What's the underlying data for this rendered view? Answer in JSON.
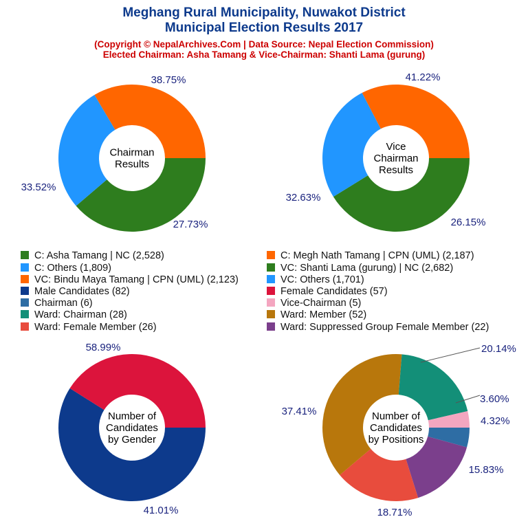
{
  "title_line1": "Meghang Rural Municipality, Nuwakot District",
  "title_line2": "Municipal Election Results 2017",
  "subtitle_line1": "(Copyright © NepalArchives.Com | Data Source: Nepal Election Commission)",
  "subtitle_line2": "Elected Chairman: Asha Tamang & Vice-Chairman: Shanti Lama (gurung)",
  "legend": [
    {
      "label": "C: Asha Tamang | NC (2,528)",
      "color": "#2e7d1e"
    },
    {
      "label": "C: Megh Nath Tamang | CPN (UML) (2,187)",
      "color": "#ff6600"
    },
    {
      "label": "C: Others (1,809)",
      "color": "#2196ff"
    },
    {
      "label": "VC: Shanti Lama (gurung) | NC (2,682)",
      "color": "#2e7d1e"
    },
    {
      "label": "VC: Bindu Maya Tamang | CPN (UML) (2,123)",
      "color": "#ff6600"
    },
    {
      "label": "VC: Others (1,701)",
      "color": "#2196ff"
    },
    {
      "label": "Male Candidates (82)",
      "color": "#0d3a8c"
    },
    {
      "label": "Female Candidates (57)",
      "color": "#dc143c"
    },
    {
      "label": "Chairman (6)",
      "color": "#2e6da4"
    },
    {
      "label": "Vice-Chairman (5)",
      "color": "#f4a6c0"
    },
    {
      "label": "Ward: Chairman (28)",
      "color": "#138f78"
    },
    {
      "label": "Ward: Member (52)",
      "color": "#b8770c"
    },
    {
      "label": "Ward: Female Member (26)",
      "color": "#e84c3d"
    },
    {
      "label": "Ward: Suppressed Group Female Member (22)",
      "color": "#7b3f8c"
    }
  ],
  "chart_data": [
    {
      "type": "pie",
      "center_label": [
        "Chairman",
        "Results"
      ],
      "slices": [
        {
          "value": 38.75,
          "label": "38.75%",
          "color": "#2e7d1e"
        },
        {
          "value": 27.73,
          "label": "27.73%",
          "color": "#2196ff"
        },
        {
          "value": 33.52,
          "label": "33.52%",
          "color": "#ff6600"
        }
      ]
    },
    {
      "type": "pie",
      "center_label": [
        "Vice",
        "Chairman",
        "Results"
      ],
      "slices": [
        {
          "value": 41.22,
          "label": "41.22%",
          "color": "#2e7d1e"
        },
        {
          "value": 26.15,
          "label": "26.15%",
          "color": "#2196ff"
        },
        {
          "value": 32.63,
          "label": "32.63%",
          "color": "#ff6600"
        }
      ]
    },
    {
      "type": "pie",
      "center_label": [
        "Number of",
        "Candidates",
        "by Gender"
      ],
      "slices": [
        {
          "value": 58.99,
          "label": "58.99%",
          "color": "#0d3a8c"
        },
        {
          "value": 41.01,
          "label": "41.01%",
          "color": "#dc143c"
        }
      ]
    },
    {
      "type": "pie",
      "center_label": [
        "Number of",
        "Candidates",
        "by Positions"
      ],
      "slices": [
        {
          "value": 4.32,
          "label": "4.32%",
          "color": "#2e6da4"
        },
        {
          "value": 15.83,
          "label": "15.83%",
          "color": "#7b3f8c"
        },
        {
          "value": 18.71,
          "label": "18.71%",
          "color": "#e84c3d"
        },
        {
          "value": 37.41,
          "label": "37.41%",
          "color": "#b8770c"
        },
        {
          "value": 20.14,
          "label": "20.14%",
          "color": "#138f78"
        },
        {
          "value": 3.6,
          "label": "3.60%",
          "color": "#f4a6c0"
        }
      ]
    }
  ]
}
